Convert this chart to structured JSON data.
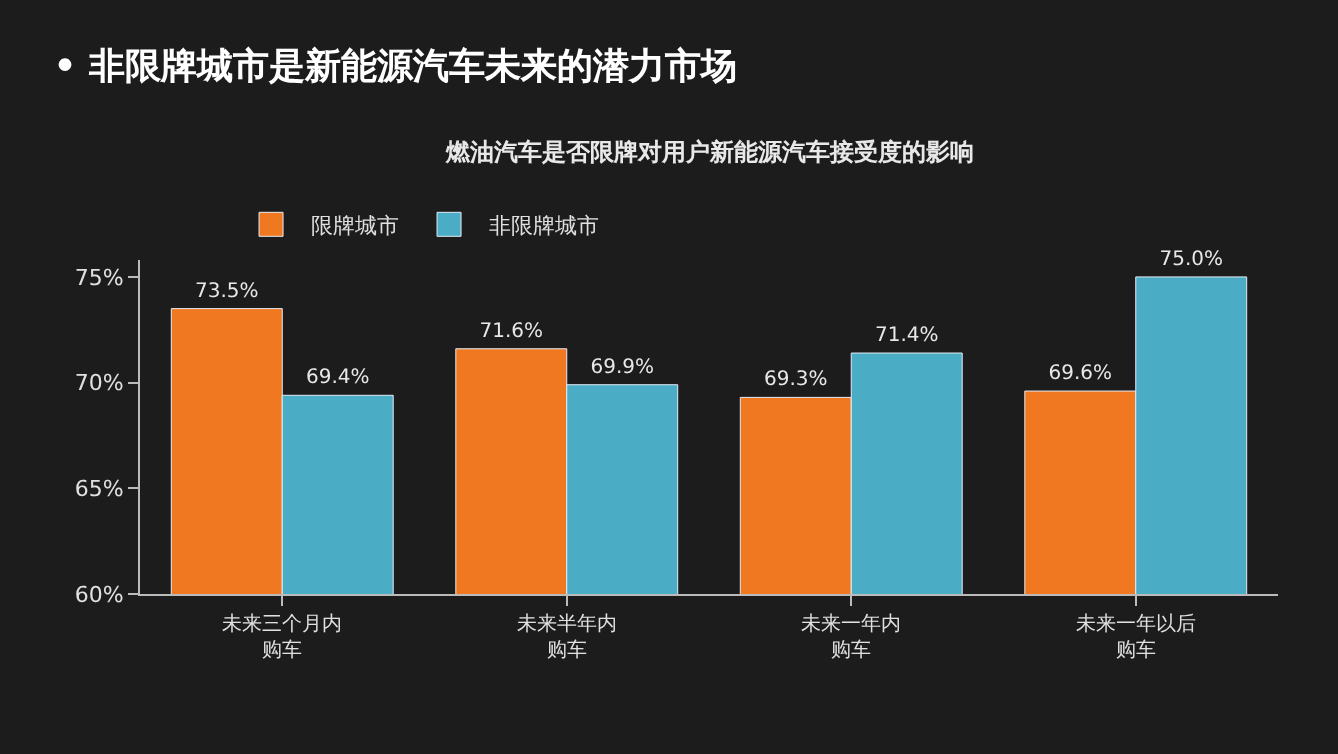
{
  "chart_data": {
    "type": "bar",
    "title": "• 非限牌城市是新能源汽车未来的潜力市场",
    "subtitle": "燃油汽车是否限牌对用户新能源汽车接受度的影响",
    "categories": [
      "未来三个月内购车",
      "未来半年内购车",
      "未来一年内购车",
      "未来一年以后购车"
    ],
    "series": [
      {
        "name": "限牌城市",
        "color": "#f07820",
        "values": [
          73.5,
          71.6,
          69.3,
          69.6
        ],
        "value_labels": [
          "73.5%",
          "71.6%",
          "69.3%",
          "69.6%"
        ]
      },
      {
        "name": "非限牌城市",
        "color": "#4bacc6",
        "values": [
          69.4,
          69.9,
          71.4,
          75.0
        ],
        "value_labels": [
          "69.4%",
          "69.9%",
          "71.4%",
          "75.0%"
        ]
      }
    ],
    "ylim": [
      60,
      75.8
    ],
    "yticks": [
      {
        "value": 60,
        "label": "60%"
      },
      {
        "value": 65,
        "label": "65%"
      },
      {
        "value": 70,
        "label": "70%"
      },
      {
        "value": 75,
        "label": "75%"
      }
    ],
    "grid": false,
    "legend": "top"
  }
}
